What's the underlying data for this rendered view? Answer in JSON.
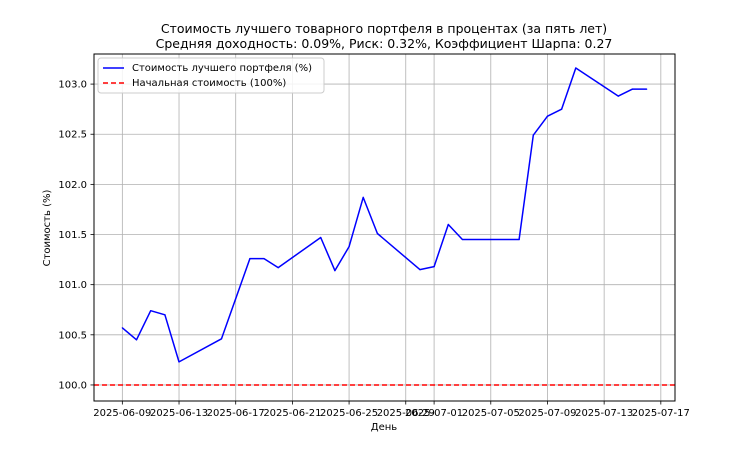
{
  "chart_data": {
    "type": "line",
    "title_line1": "Стоимость лучшего товарного портфеля в процентах (за пять лет)",
    "title_line2": "Средняя доходность: 0.09%, Риск: 0.32%, Коэффициент Шарпа: 0.27",
    "xlabel": "День",
    "ylabel": "Стоимость (%)",
    "grid": true,
    "legend_position": "top-left",
    "xlim": [
      "2025-06-07",
      "2025-07-18"
    ],
    "ylim": [
      99.84,
      103.3
    ],
    "x_ticks": [
      "2025-06-09",
      "2025-06-13",
      "2025-06-17",
      "2025-06-21",
      "2025-06-25",
      "2025-06-29",
      "2025-07-01",
      "2025-07-05",
      "2025-07-09",
      "2025-07-13",
      "2025-07-17"
    ],
    "x_tick_labels": [
      "2025-06-09",
      "2025-06-13",
      "2025-06-17",
      "2025-06-21",
      "2025-06-25",
      "2025-06-29",
      "2025-07-01",
      "2025-07-05",
      "2025-07-09",
      "2025-07-13",
      "2025-07-17"
    ],
    "y_ticks": [
      100.0,
      100.5,
      101.0,
      101.5,
      102.0,
      102.5,
      103.0
    ],
    "y_tick_labels": [
      "100.0",
      "100.5",
      "101.0",
      "101.5",
      "102.0",
      "102.5",
      "103.0"
    ],
    "series": [
      {
        "name": "Стоимость лучшего портфеля (%)",
        "color": "#0000ff",
        "style": "solid",
        "x": [
          "2025-06-09",
          "2025-06-10",
          "2025-06-11",
          "2025-06-12",
          "2025-06-13",
          "2025-06-16",
          "2025-06-18",
          "2025-06-19",
          "2025-06-20",
          "2025-06-23",
          "2025-06-24",
          "2025-06-25",
          "2025-06-26",
          "2025-06-27",
          "2025-06-30",
          "2025-07-01",
          "2025-07-02",
          "2025-07-03",
          "2025-07-07",
          "2025-07-08",
          "2025-07-09",
          "2025-07-10",
          "2025-07-11",
          "2025-07-14",
          "2025-07-15",
          "2025-07-16"
        ],
        "y": [
          100.57,
          100.45,
          100.74,
          100.7,
          100.23,
          100.46,
          101.26,
          101.26,
          101.17,
          101.47,
          101.14,
          101.38,
          101.87,
          101.51,
          101.15,
          101.18,
          101.6,
          101.45,
          101.45,
          102.49,
          102.68,
          102.75,
          103.16,
          102.88,
          102.95,
          102.95
        ]
      },
      {
        "name": "Начальная стоимость (100%)",
        "color": "#ff0000",
        "style": "dashed",
        "y_constant": 100.0
      }
    ]
  }
}
